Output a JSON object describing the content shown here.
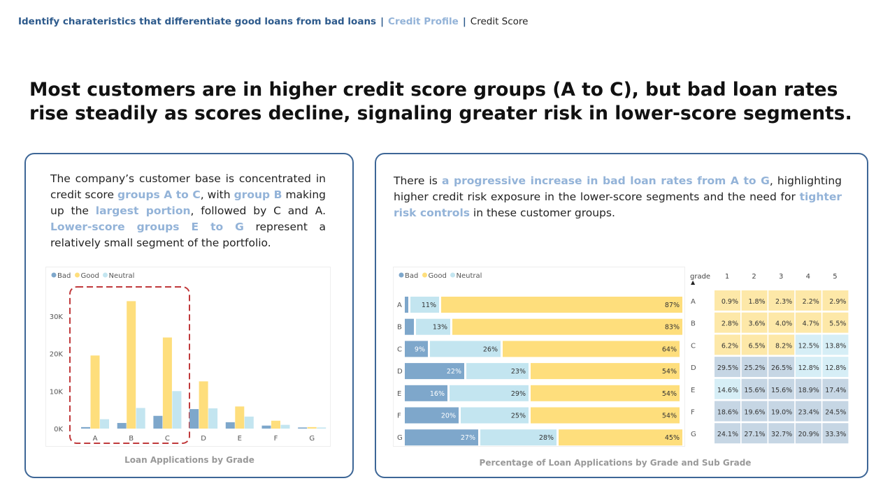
{
  "breadcrumb": {
    "item1": "Identify charateristics that differentiate good loans from bad loans",
    "sep": "|",
    "item2": "Credit Profile",
    "item3": "Credit Score"
  },
  "headline": "Most customers are in higher credit score groups (A to C), but bad loan rates rise steadily as scores decline, signaling greater risk in lower-score segments.",
  "left": {
    "t1": "The company’s customer base is concentrated in credit score ",
    "h1": "groups A to C",
    "t2": ", with ",
    "h2": "group B",
    "t3": " making up the ",
    "h3": "largest portion",
    "t4": ", followed by C and A. ",
    "h4": "Lower-score groups E to G",
    "t5": " represent a relatively small segment of the portfolio.",
    "caption": "Loan Applications by Grade"
  },
  "right": {
    "t1": "There is ",
    "h1": "a progressive increase in bad loan rates from A to G",
    "t2": ", highlighting higher credit risk exposure in the lower-score segments and the need for ",
    "h2": "tighter risk controls",
    "t3": " in these customer groups.",
    "caption": "Percentage of Loan Applications by Grade and Sub Grade"
  },
  "colors": {
    "bad": "#7ea7cb",
    "good": "#fede7c",
    "neutral": "#c3e5f0",
    "heat_low": "#fde8a8",
    "heat_mid": "#d6eef6",
    "heat_high": "#c6d6e4",
    "highlight_box": "#c0393b"
  },
  "chart_data": [
    {
      "type": "bar",
      "title": "Loan Applications by Grade",
      "categories": [
        "A",
        "B",
        "C",
        "D",
        "E",
        "F",
        "G"
      ],
      "legend": [
        "Bad",
        "Good",
        "Neutral"
      ],
      "legend_position": "top-left",
      "yticks": [
        "0K",
        "10K",
        "20K",
        "30K"
      ],
      "ylim": [
        0,
        36
      ],
      "series": [
        {
          "name": "Bad",
          "values": [
            0.4,
            1.5,
            3.4,
            5.2,
            1.7,
            0.8,
            0.3
          ]
        },
        {
          "name": "Good",
          "values": [
            19.5,
            34,
            24.3,
            12.6,
            5.9,
            2.1,
            0.4
          ]
        },
        {
          "name": "Neutral",
          "values": [
            2.5,
            5.5,
            10,
            5.4,
            3.2,
            1.0,
            0.3
          ]
        }
      ],
      "annotation": "A–C highlighted"
    },
    {
      "type": "bar",
      "orientation": "horizontal-stacked-100",
      "title": "Percentage of Loan Applications by Grade and Sub Grade",
      "categories": [
        "A",
        "B",
        "C",
        "D",
        "E",
        "F",
        "G"
      ],
      "legend": [
        "Bad",
        "Good",
        "Neutral"
      ],
      "series": [
        {
          "name": "Bad",
          "values": [
            2,
            4,
            9,
            22,
            16,
            20,
            27
          ],
          "labels": [
            "",
            "",
            "9%",
            "22%",
            "16%",
            "20%",
            "27%"
          ]
        },
        {
          "name": "Neutral",
          "values": [
            11,
            13,
            26,
            23,
            29,
            25,
            28
          ],
          "labels": [
            "11%",
            "13%",
            "26%",
            "23%",
            "29%",
            "25%",
            "28%"
          ]
        },
        {
          "name": "Good",
          "values": [
            87,
            83,
            64,
            54,
            54,
            54,
            45
          ],
          "labels": [
            "87%",
            "83%",
            "64%",
            "54%",
            "54%",
            "54%",
            "45%"
          ]
        }
      ]
    },
    {
      "type": "heatmap",
      "row_header": "grade",
      "columns": [
        "1",
        "2",
        "3",
        "4",
        "5"
      ],
      "rows": [
        "A",
        "B",
        "C",
        "D",
        "E",
        "F",
        "G"
      ],
      "values": [
        [
          "0.9%",
          "1.8%",
          "2.3%",
          "2.2%",
          "2.9%"
        ],
        [
          "2.8%",
          "3.6%",
          "4.0%",
          "4.7%",
          "5.5%"
        ],
        [
          "6.2%",
          "6.5%",
          "8.2%",
          "12.5%",
          "13.8%"
        ],
        [
          "29.5%",
          "25.2%",
          "26.5%",
          "12.8%",
          "12.8%"
        ],
        [
          "14.6%",
          "15.6%",
          "15.6%",
          "18.9%",
          "17.4%"
        ],
        [
          "18.6%",
          "19.6%",
          "19.0%",
          "23.4%",
          "24.5%"
        ],
        [
          "24.1%",
          "27.1%",
          "32.7%",
          "20.9%",
          "33.3%"
        ]
      ]
    }
  ]
}
